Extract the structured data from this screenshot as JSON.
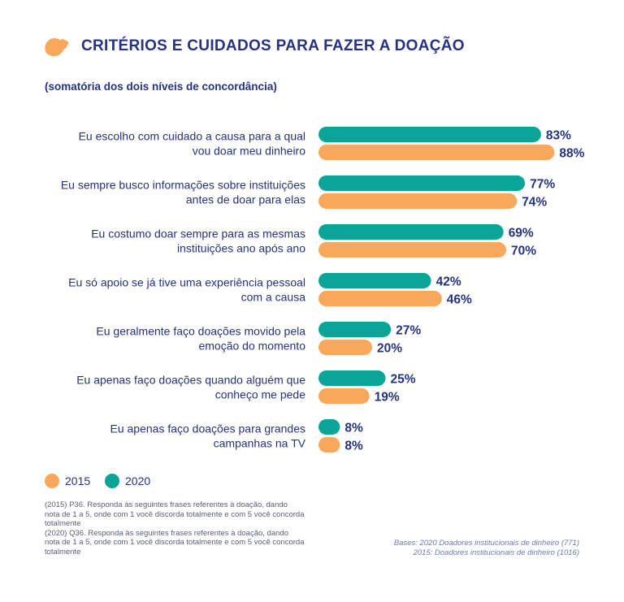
{
  "header": {
    "title": "CRITÉRIOS E CUIDADOS PARA FAZER A DOAÇÃO",
    "subtitle": "(somatória dos dois níveis de concordância)"
  },
  "colors": {
    "series_2020": "#0aa597",
    "series_2015": "#f7a85a",
    "text": "#26337f"
  },
  "chart_data": {
    "type": "bar",
    "orientation": "horizontal",
    "categories": [
      [
        "Eu escolho com cuidado a causa para a qual",
        "vou doar meu dinheiro"
      ],
      [
        "Eu sempre busco informações sobre instituições",
        "antes de doar para elas"
      ],
      [
        "Eu costumo doar sempre para as mesmas",
        "instituições ano após ano"
      ],
      [
        "Eu só apoio se já tive uma experiência pessoal",
        "com a causa"
      ],
      [
        "Eu geralmente faço doações movido pela",
        "emoção do momento"
      ],
      [
        "Eu apenas faço doações quando alguém que",
        "conheço me pede"
      ],
      [
        "Eu apenas faço doações para grandes",
        "campanhas na TV"
      ]
    ],
    "series": [
      {
        "name": "2020",
        "color": "#0aa597",
        "values": [
          83,
          77,
          69,
          42,
          27,
          25,
          8
        ],
        "labels": [
          "83%",
          "77%",
          "69%",
          "42%",
          "27%",
          "25%",
          "8%"
        ]
      },
      {
        "name": "2015",
        "color": "#f7a85a",
        "values": [
          88,
          74,
          70,
          46,
          20,
          19,
          8
        ],
        "labels": [
          "88%",
          "74%",
          "70%",
          "46%",
          "20%",
          "19%",
          "8%"
        ]
      }
    ],
    "xlim": [
      0,
      100
    ],
    "grid": false,
    "legend_placement": "bottom-left"
  },
  "legend": {
    "items": [
      {
        "label": "2015",
        "color": "#f7a85a"
      },
      {
        "label": "2020",
        "color": "#0aa597"
      }
    ]
  },
  "footnotes": {
    "note_2015": "(2015) P36. Responda às seguintes frases referentes à doação, dando nota de 1 a 5, onde com 1 você discorda totalmente e com 5 você concorda totalmente",
    "note_2020": "(2020) Q36. Responda às seguintes frases referentes à doação, dando nota de 1 a 5, onde com 1 você discorda totalmente e com 5 você concorda totalmente"
  },
  "bases": {
    "line1": "Bases: 2020 Doadores institucionais de dinheiro (771)",
    "line2": "2015: Doadores institucionais de dinheiro (1016)"
  }
}
